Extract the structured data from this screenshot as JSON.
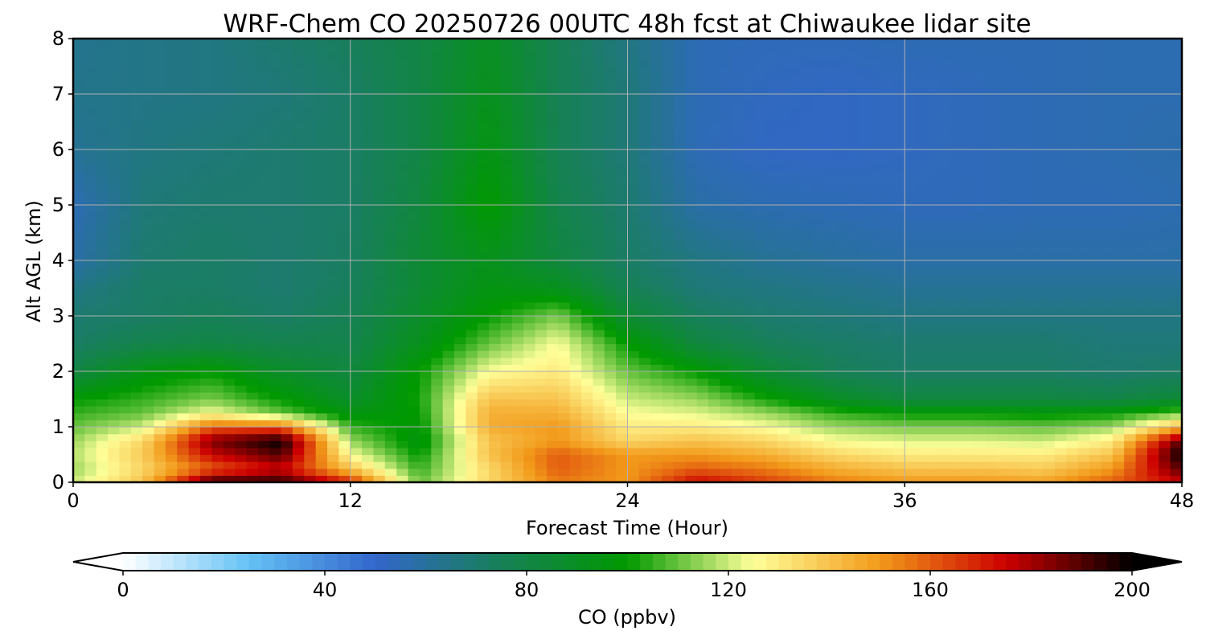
{
  "chart_data": {
    "type": "heatmap",
    "title": "WRF-Chem CO  20250726 00UTC 48h fcst at Chiwaukee lidar site",
    "xlabel": "Forecast Time (Hour)",
    "ylabel": "Alt AGL (km)",
    "xlim": [
      0,
      48
    ],
    "ylim": [
      0,
      8
    ],
    "xticks": [
      0,
      12,
      24,
      36,
      48
    ],
    "yticks": [
      0,
      1,
      2,
      3,
      4,
      5,
      6,
      7,
      8
    ],
    "grid": true,
    "x_hours": [
      0,
      3,
      6,
      9,
      12,
      15,
      18,
      21,
      24,
      27,
      30,
      33,
      36,
      39,
      42,
      45,
      48
    ],
    "y_km": [
      0,
      0.25,
      0.5,
      0.75,
      1.0,
      1.25,
      1.5,
      2.0,
      2.5,
      3.0,
      3.5,
      4.0,
      5.0,
      6.0,
      7.0,
      8.0
    ],
    "co_ppbv": [
      [
        120,
        140,
        195,
        195,
        170,
        110,
        135,
        155,
        150,
        175,
        165,
        155,
        150,
        150,
        148,
        160,
        175
      ],
      [
        115,
        135,
        160,
        175,
        140,
        105,
        135,
        160,
        150,
        160,
        155,
        145,
        140,
        140,
        138,
        150,
        190
      ],
      [
        118,
        138,
        175,
        190,
        125,
        100,
        140,
        160,
        150,
        150,
        145,
        135,
        130,
        130,
        130,
        140,
        200
      ],
      [
        115,
        135,
        185,
        200,
        115,
        95,
        140,
        150,
        135,
        140,
        135,
        125,
        122,
        122,
        120,
        130,
        190
      ],
      [
        110,
        120,
        160,
        160,
        105,
        98,
        145,
        150,
        130,
        130,
        125,
        115,
        112,
        112,
        110,
        115,
        145
      ],
      [
        105,
        110,
        125,
        110,
        95,
        100,
        145,
        145,
        125,
        122,
        115,
        105,
        100,
        100,
        98,
        100,
        110
      ],
      [
        100,
        105,
        112,
        100,
        88,
        102,
        140,
        140,
        120,
        115,
        102,
        90,
        82,
        82,
        82,
        80,
        85
      ],
      [
        80,
        95,
        100,
        88,
        82,
        100,
        125,
        130,
        110,
        100,
        85,
        75,
        72,
        72,
        72,
        70,
        72
      ],
      [
        72,
        78,
        80,
        78,
        78,
        92,
        110,
        125,
        100,
        82,
        75,
        72,
        70,
        70,
        70,
        68,
        68
      ],
      [
        70,
        72,
        75,
        72,
        76,
        88,
        100,
        112,
        85,
        74,
        70,
        68,
        66,
        66,
        66,
        66,
        66
      ],
      [
        65,
        72,
        72,
        70,
        74,
        85,
        95,
        92,
        76,
        68,
        66,
        64,
        62,
        62,
        62,
        62,
        62
      ],
      [
        58,
        70,
        72,
        70,
        73,
        85,
        92,
        82,
        72,
        66,
        62,
        60,
        58,
        58,
        58,
        58,
        58
      ],
      [
        55,
        68,
        70,
        70,
        72,
        82,
        100,
        78,
        70,
        58,
        56,
        55,
        54,
        54,
        55,
        55,
        56
      ],
      [
        62,
        66,
        68,
        70,
        72,
        80,
        95,
        76,
        68,
        55,
        52,
        52,
        53,
        54,
        55,
        56,
        57
      ],
      [
        64,
        65,
        66,
        68,
        72,
        80,
        92,
        76,
        68,
        55,
        53,
        52,
        53,
        54,
        55,
        56,
        56
      ],
      [
        63,
        65,
        66,
        70,
        74,
        80,
        90,
        76,
        66,
        55,
        54,
        54,
        55,
        55,
        55,
        56,
        56
      ]
    ],
    "colorbar": {
      "label": "CO  (ppbv)",
      "min": 0,
      "max": 200,
      "ticks": [
        0,
        40,
        80,
        120,
        160,
        200
      ],
      "extend": "both",
      "colors": [
        "#ffffff",
        "#64c2f5",
        "#3366cc",
        "#178057",
        "#009900",
        "#ffff99",
        "#f29a1a",
        "#cc0000",
        "#000000"
      ]
    }
  }
}
